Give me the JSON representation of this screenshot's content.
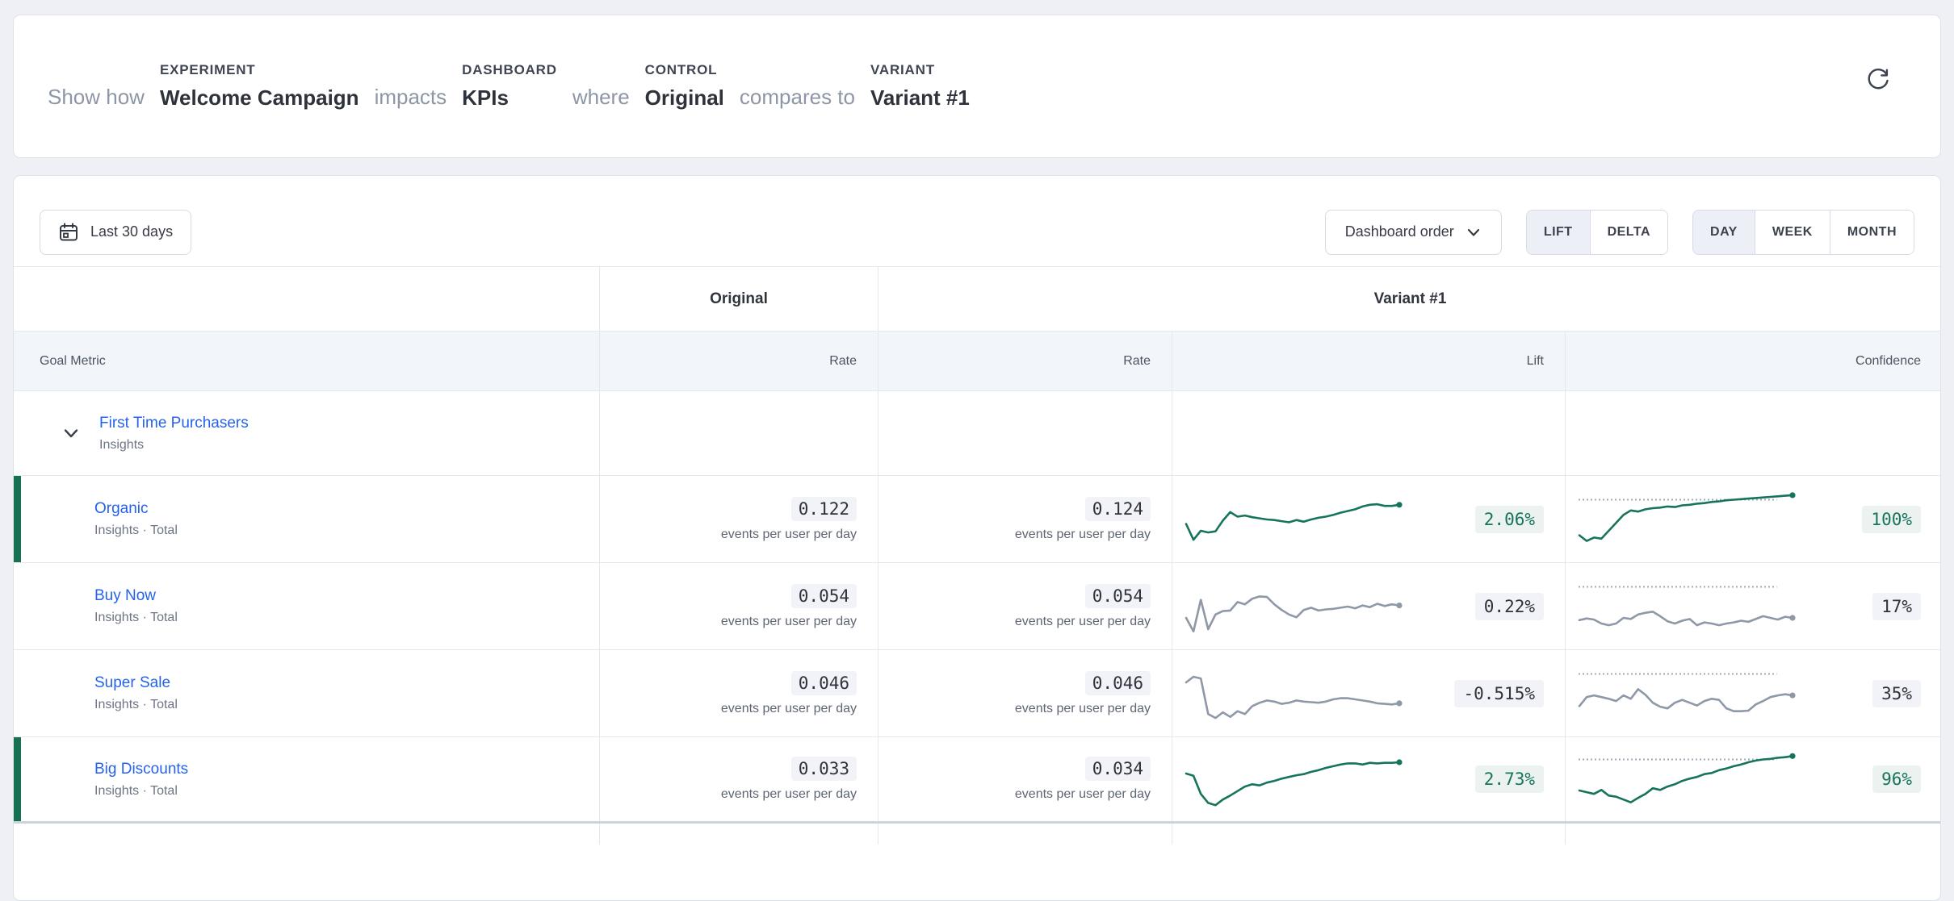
{
  "colors": {
    "significant": "#17745c",
    "neutral": "#8e98a7",
    "threshold_dotted": "#a2aab8",
    "link_blue": "#2563eb",
    "accent_bar": "#15714f"
  },
  "experiment_bar": {
    "show_how": "Show how",
    "experiment_label": "EXPERIMENT",
    "experiment_value": "Welcome Campaign",
    "impacts": "impacts",
    "dashboard_label": "DASHBOARD",
    "dashboard_value": "KPIs",
    "where": "where",
    "control_label": "CONTROL",
    "control_value": "Original",
    "compares_to": "compares to",
    "variant_label": "VARIANT",
    "variant_value": "Variant #1",
    "refresh_icon": "refresh-icon"
  },
  "toolbar": {
    "date_range": "Last 30 days",
    "date_range_icon": "calendar-icon",
    "dashboard_order": "Dashboard order",
    "dashboard_order_icon": "chevron-down-icon",
    "mode_toggle": [
      "LIFT",
      "DELTA"
    ],
    "active_mode": "LIFT",
    "granularity_toggle": [
      "DAY",
      "WEEK",
      "MONTH"
    ],
    "active_granularity": "DAY"
  },
  "table": {
    "group_headers": {
      "original": "Original",
      "variant": "Variant #1"
    },
    "columns": {
      "goal_metric": "Goal Metric",
      "original_rate": "Rate",
      "variant_rate": "Rate",
      "lift": "Lift",
      "confidence": "Confidence"
    },
    "unit": "events per user per day",
    "rows": [
      {
        "name": "First Time Purchasers",
        "subtitle": "Insights",
        "expandable": true
      },
      {
        "name": "Organic",
        "subtitle": "Insights · Total",
        "original_rate": "0.122",
        "variant_rate": "0.124",
        "lift": "2.06%",
        "confidence": "100%",
        "significant": true,
        "lift_spark": [
          42,
          14,
          30,
          27,
          29,
          48,
          63,
          55,
          57,
          54,
          52,
          50,
          49,
          47,
          45,
          49,
          46,
          50,
          53,
          55,
          58,
          62,
          65,
          68,
          73,
          76,
          77,
          74,
          74,
          76
        ],
        "confidence_spark": [
          22,
          12,
          18,
          16,
          30,
          44,
          58,
          66,
          64,
          68,
          70,
          71,
          73,
          72,
          75,
          76,
          78,
          79,
          81,
          82,
          84,
          85,
          86,
          87,
          88,
          89,
          90,
          91,
          92,
          93
        ]
      },
      {
        "name": "Buy Now",
        "subtitle": "Insights · Total",
        "original_rate": "0.054",
        "variant_rate": "0.054",
        "lift": "0.22%",
        "confidence": "17%",
        "significant": false,
        "lift_spark": [
          30,
          6,
          62,
          10,
          36,
          42,
          43,
          58,
          54,
          64,
          68,
          67,
          54,
          44,
          36,
          31,
          44,
          48,
          43,
          45,
          46,
          48,
          50,
          47,
          52,
          49,
          55,
          51,
          54,
          52
        ],
        "confidence_spark": [
          26,
          29,
          27,
          20,
          17,
          20,
          30,
          28,
          36,
          39,
          41,
          33,
          24,
          20,
          25,
          28,
          17,
          22,
          20,
          17,
          20,
          22,
          25,
          23,
          28,
          33,
          30,
          27,
          32,
          30
        ]
      },
      {
        "name": "Super Sale",
        "subtitle": "Insights · Total",
        "original_rate": "0.046",
        "variant_rate": "0.046",
        "lift": "-0.515%",
        "confidence": "35%",
        "significant": false,
        "lift_spark": [
          70,
          80,
          77,
          14,
          7,
          17,
          9,
          19,
          14,
          28,
          34,
          38,
          36,
          32,
          34,
          38,
          36,
          35,
          34,
          36,
          40,
          42,
          42,
          40,
          38,
          36,
          33,
          32,
          31,
          33
        ],
        "confidence_spark": [
          28,
          44,
          47,
          44,
          41,
          37,
          47,
          41,
          58,
          48,
          34,
          27,
          24,
          34,
          39,
          34,
          29,
          37,
          41,
          39,
          24,
          19,
          19,
          20,
          31,
          37,
          44,
          47,
          49,
          47
        ]
      },
      {
        "name": "Big Discounts",
        "subtitle": "Insights · Total",
        "original_rate": "0.033",
        "variant_rate": "0.034",
        "lift": "2.73%",
        "confidence": "96%",
        "significant": true,
        "lift_spark": [
          60,
          56,
          24,
          8,
          4,
          14,
          21,
          29,
          37,
          41,
          39,
          44,
          47,
          51,
          54,
          57,
          59,
          63,
          66,
          70,
          73,
          76,
          78,
          78,
          76,
          79,
          78,
          79,
          79,
          80
        ],
        "confidence_spark": [
          30,
          27,
          24,
          31,
          21,
          19,
          14,
          9,
          17,
          24,
          34,
          31,
          37,
          41,
          47,
          51,
          54,
          59,
          61,
          66,
          69,
          73,
          76,
          80,
          83,
          85,
          86,
          88,
          89,
          91
        ]
      }
    ]
  }
}
